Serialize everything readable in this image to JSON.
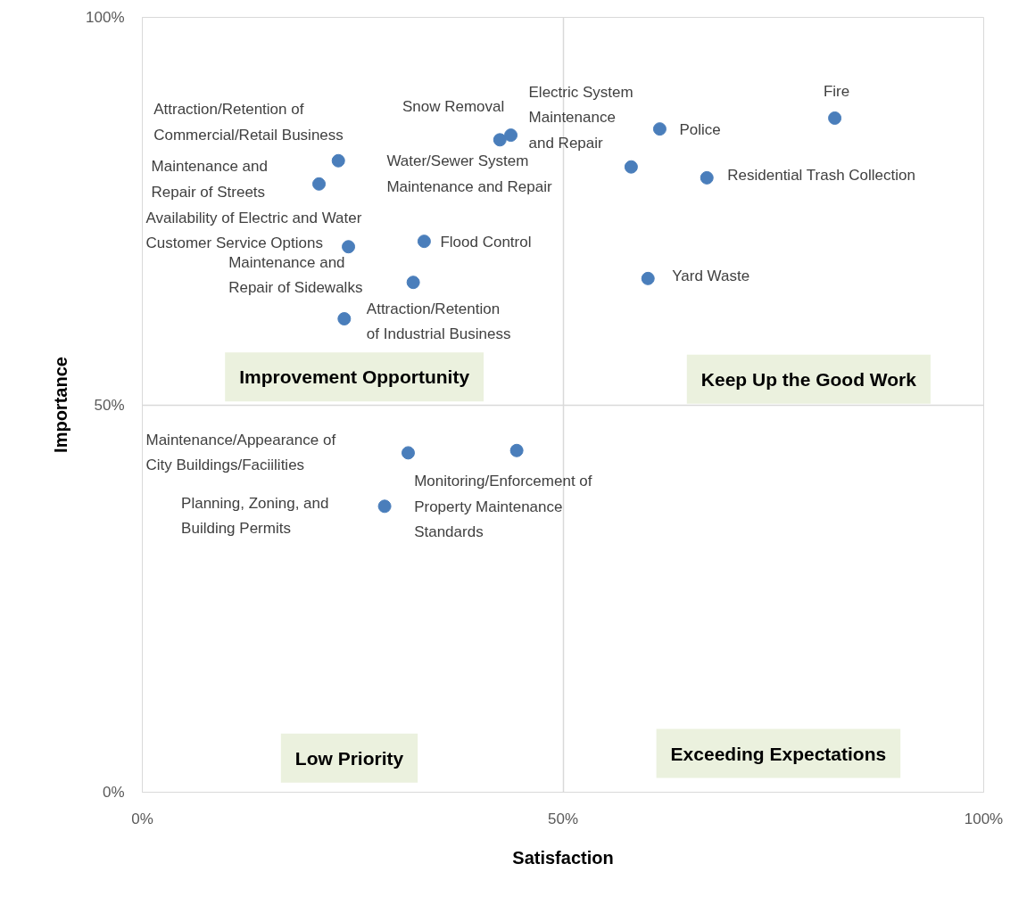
{
  "chart_data": {
    "type": "scatter",
    "xlabel": "Satisfaction",
    "ylabel": "Importance",
    "color": "#4a7ebb",
    "marker": "circle",
    "grid": true,
    "xlim": [
      0,
      100
    ],
    "ylim": [
      0,
      100
    ],
    "xticks": [
      {
        "value": 0,
        "label": "0%"
      },
      {
        "value": 50,
        "label": "50%"
      },
      {
        "value": 100,
        "label": "100%"
      }
    ],
    "yticks": [
      {
        "value": 0,
        "label": "0%"
      },
      {
        "value": 50,
        "label": "50%"
      },
      {
        "value": 100,
        "label": "100%"
      }
    ],
    "x": [
      82.3,
      61.5,
      43.8,
      42.5,
      58.1,
      67.1,
      23.3,
      21.0,
      24.5,
      33.5,
      32.2,
      60.1,
      24.0,
      31.6,
      44.5,
      28.8
    ],
    "values": [
      87.0,
      85.6,
      84.8,
      84.2,
      80.7,
      79.3,
      81.5,
      78.5,
      70.4,
      71.1,
      65.8,
      66.3,
      61.1,
      43.8,
      44.1,
      36.9
    ],
    "annotations": [
      "Fire",
      "Police",
      "Electric System\nMaintenance\nand Repair",
      "Snow Removal",
      "Water/Sewer System\nMaintenance and Repair",
      "Residential Trash Collection",
      "Attraction/Retention of\nCommercial/Retail Business",
      "Maintenance and\nRepair of Streets",
      "Availability of Electric and Water\nCustomer Service Options",
      "Flood Control",
      "Maintenance and\nRepair of Sidewalks",
      "Yard Waste",
      "Attraction/Retention\nof Industrial Business",
      "Maintenance/Appearance of\nCity Buildings/Faciilities",
      "Monitoring/Enforcement of\nProperty Maintenance\nStandards",
      "Planning, Zoning, and\nBuilding Permits",
      "Improvement Opportunity",
      "Keep Up the Good Work",
      "Low Priority",
      "Exceeding Expectations"
    ]
  }
}
